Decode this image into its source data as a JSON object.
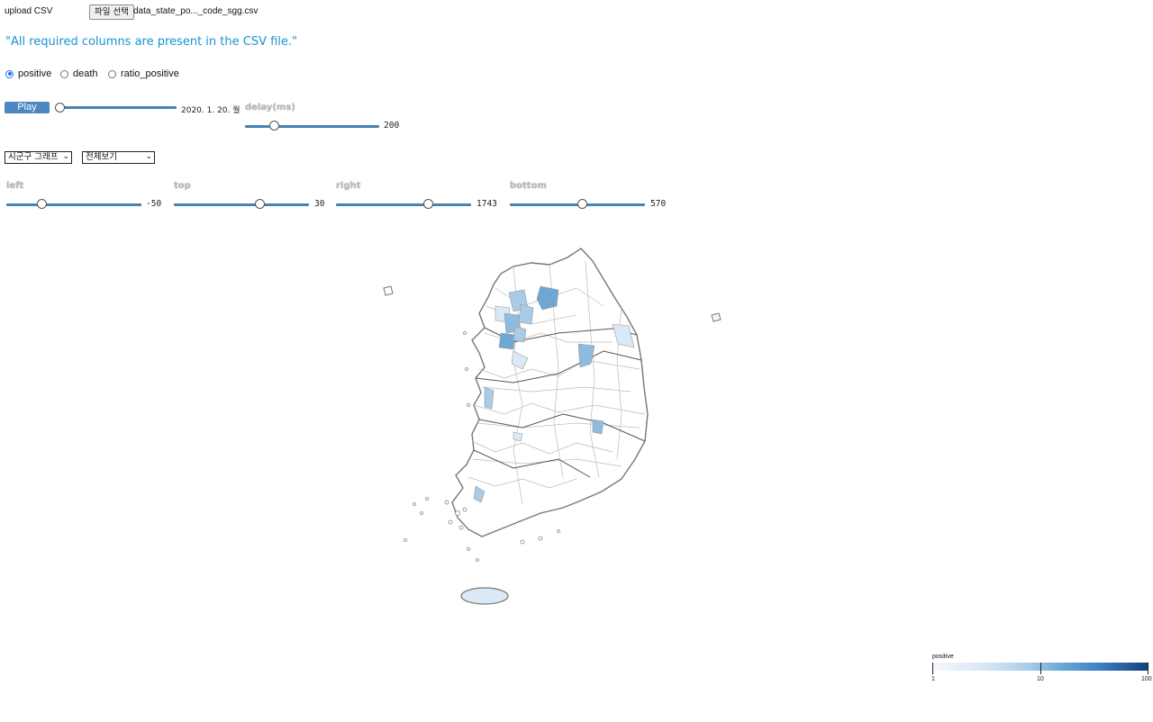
{
  "upload": {
    "label": "upload CSV",
    "button": "파일 선택",
    "file_name": "data_state_po..._code_sgg.csv"
  },
  "status": "\"All required columns are present in the CSV file.\"",
  "radios": [
    {
      "label": "positive",
      "checked": true
    },
    {
      "label": "death",
      "checked": false
    },
    {
      "label": "ratio_positive",
      "checked": false
    }
  ],
  "player": {
    "play_label": "Play",
    "date": "2020. 1. 20. 월",
    "date_progress": 0.0,
    "delay_label": "delay(ms)",
    "delay_value": "200"
  },
  "selects": {
    "graph": "시군구 그래프",
    "view": "전체보기"
  },
  "margins": [
    {
      "label": "left",
      "value": "-50"
    },
    {
      "label": "top",
      "value": "30"
    },
    {
      "label": "right",
      "value": "1743"
    },
    {
      "label": "bottom",
      "value": "570"
    }
  ],
  "legend": {
    "title": "positive",
    "ticks": [
      "1",
      "10",
      "100"
    ]
  },
  "colors": {
    "accent": "#4682b4",
    "status_text": "#1a93d1",
    "choropleth_low": "#dbe9f6",
    "choropleth_high": "#6fa7d3"
  }
}
